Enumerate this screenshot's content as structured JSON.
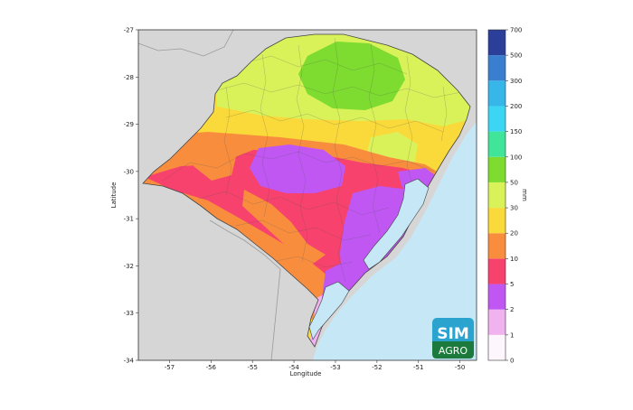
{
  "map": {
    "xlabel": "Longitude",
    "ylabel": "Latitude",
    "x_ticks": [
      "-57",
      "-56",
      "-55",
      "-54",
      "-53",
      "-52",
      "-51",
      "-50"
    ],
    "y_ticks": [
      "-27",
      "-28",
      "-29",
      "-30",
      "-31",
      "-32",
      "-33",
      "-34"
    ],
    "xlim": [
      -57.75,
      -49.6
    ],
    "ylim": [
      -34,
      -27
    ]
  },
  "colorbar": {
    "unit": "mm",
    "tick_labels": [
      "0",
      "1",
      "2",
      "5",
      "10",
      "20",
      "30",
      "50",
      "100",
      "150",
      "200",
      "300",
      "500",
      "700"
    ],
    "colors": [
      "#fdf7fd",
      "#f0b3ef",
      "#c057f3",
      "#f7426d",
      "#f98d3e",
      "#f9da3a",
      "#d9f25a",
      "#7ddc2f",
      "#40e59a",
      "#3cd6f4",
      "#37b6ea",
      "#3a7fcf",
      "#2b3f9a"
    ]
  },
  "logo": {
    "line1": "SIM",
    "line2": "AGRO"
  }
}
